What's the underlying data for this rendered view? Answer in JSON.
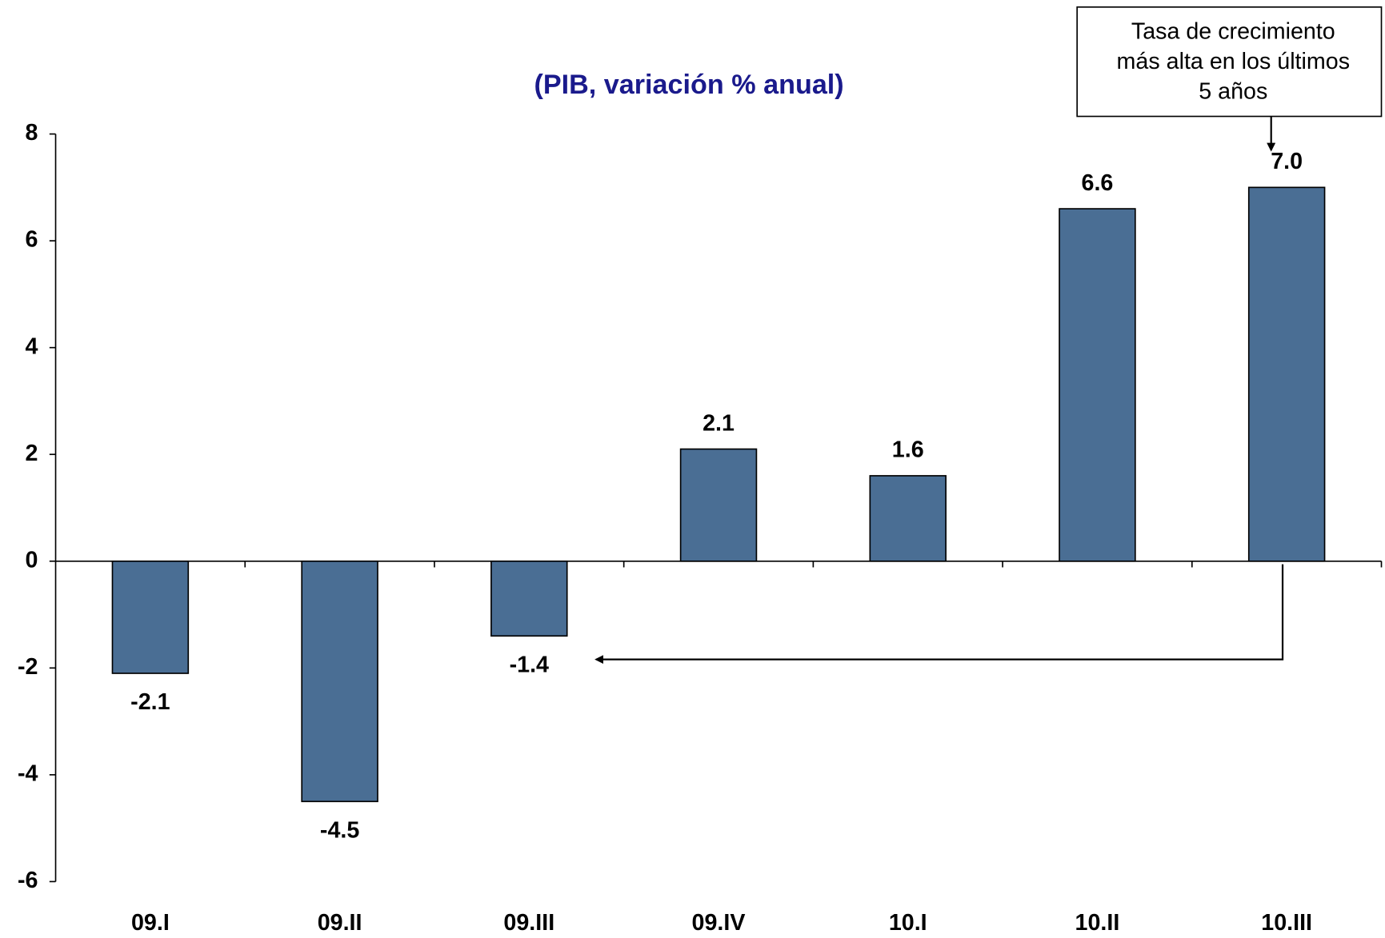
{
  "chart_data": {
    "type": "bar",
    "title": "(PIB, variación % anual)",
    "categories": [
      "09.I",
      "09.II",
      "09.III",
      "09.IV",
      "10.I",
      "10.II",
      "10.III"
    ],
    "values": [
      -2.1,
      -4.5,
      -1.4,
      2.1,
      1.6,
      6.6,
      7.0
    ],
    "value_labels": [
      "-2.1",
      "-4.5",
      "-1.4",
      "2.1",
      "1.6",
      "6.6",
      "7.0"
    ],
    "color": "#4a6e94",
    "ylim": [
      -6,
      8
    ],
    "yticks": [
      -6,
      -4,
      -2,
      0,
      2,
      4,
      6,
      8
    ],
    "annotation": [
      "Tasa de crecimiento",
      "más alta en los últimos",
      "5 años"
    ]
  }
}
